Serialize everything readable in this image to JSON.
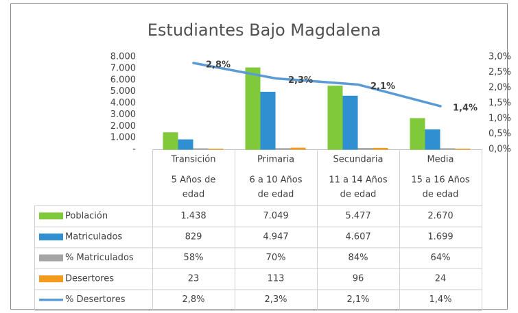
{
  "chart_data": {
    "type": "bar",
    "title": "Estudiantes Bajo Magdalena",
    "categories": [
      "Transición",
      "Primaria",
      "Secundaria",
      "Media"
    ],
    "category_ages": [
      [
        "5 Años de",
        "edad"
      ],
      [
        "6 a 10 Años",
        "de edad"
      ],
      [
        "11 a 14 Años",
        "de edad"
      ],
      [
        "15 a 16 Años",
        "de edad"
      ]
    ],
    "ylim": [
      0,
      8000
    ],
    "yticks": [
      {
        "value": 0,
        "label": "-"
      },
      {
        "value": 1000,
        "label": "1.000"
      },
      {
        "value": 2000,
        "label": "2.000"
      },
      {
        "value": 3000,
        "label": "3.000"
      },
      {
        "value": 4000,
        "label": "4.000"
      },
      {
        "value": 5000,
        "label": "5.000"
      },
      {
        "value": 6000,
        "label": "6.000"
      },
      {
        "value": 7000,
        "label": "7.000"
      },
      {
        "value": 8000,
        "label": "8.000"
      }
    ],
    "y2lim": [
      0,
      3
    ],
    "y2ticks": [
      {
        "value": 0,
        "label": "0,0%"
      },
      {
        "value": 0.5,
        "label": "0,5%"
      },
      {
        "value": 1,
        "label": "1,0%"
      },
      {
        "value": 1.5,
        "label": "1,5%"
      },
      {
        "value": 2,
        "label": "2,0%"
      },
      {
        "value": 2.5,
        "label": "2,5%"
      },
      {
        "value": 3,
        "label": "3,0%"
      }
    ],
    "series": [
      {
        "name": "Población",
        "color": "#7fc93a",
        "type": "bar",
        "values": [
          1438,
          7049,
          5477,
          2670
        ],
        "value_labels": [
          "1.438",
          "7.049",
          "5.477",
          "2.670"
        ]
      },
      {
        "name": "Matriculados",
        "color": "#2f8fd1",
        "type": "bar",
        "values": [
          829,
          4947,
          4607,
          1699
        ],
        "value_labels": [
          "829",
          "4.947",
          "4.607",
          "1.699"
        ]
      },
      {
        "name": "% Matriculados",
        "color": "#a5a5a5",
        "type": "bar",
        "values": [
          58,
          70,
          84,
          64
        ],
        "value_labels": [
          "58%",
          "70%",
          "84%",
          "64%"
        ]
      },
      {
        "name": "Desertores",
        "color": "#f29b1d",
        "type": "bar",
        "values": [
          23,
          113,
          96,
          24
        ],
        "value_labels": [
          "23",
          "113",
          "96",
          "24"
        ]
      },
      {
        "name": "% Desertores",
        "color": "#5b9bd5",
        "type": "line",
        "axis": "y2",
        "values": [
          2.8,
          2.3,
          2.1,
          1.4
        ],
        "value_labels": [
          "2,8%",
          "2,3%",
          "2,1%",
          "1,4%"
        ]
      }
    ]
  }
}
